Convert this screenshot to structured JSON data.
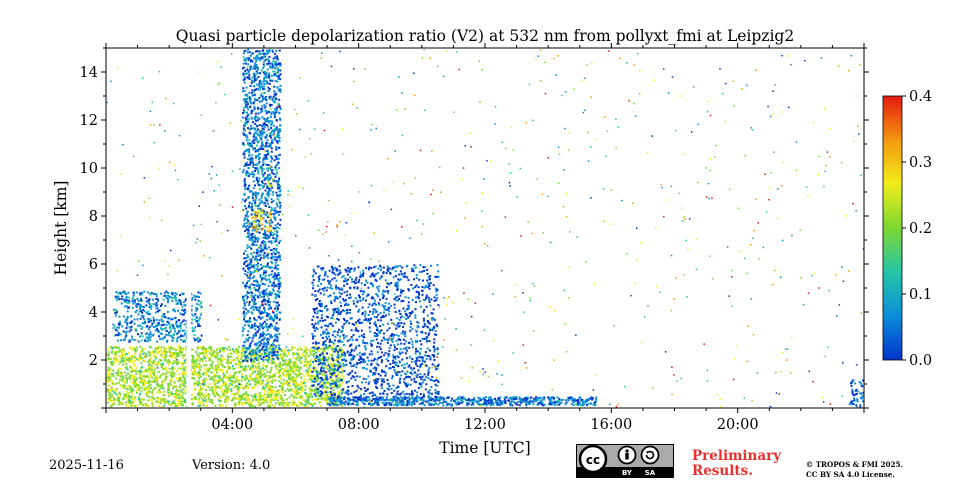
{
  "chart_data": {
    "type": "heatmap",
    "title": "Quasi particle depolarization ratio (V2) at 532 nm from pollyxt_fmi at Leipzig2",
    "xlabel": "Time [UTC]",
    "ylabel": "Height [km]",
    "xlim_hours": [
      0,
      24
    ],
    "ylim_km": [
      0,
      15
    ],
    "x_ticks": [
      {
        "hour": 4,
        "label": "04:00"
      },
      {
        "hour": 8,
        "label": "08:00"
      },
      {
        "hour": 12,
        "label": "12:00"
      },
      {
        "hour": 16,
        "label": "16:00"
      },
      {
        "hour": 20,
        "label": "20:00"
      }
    ],
    "y_ticks": [
      {
        "km": 2,
        "label": "2"
      },
      {
        "km": 4,
        "label": "4"
      },
      {
        "km": 6,
        "label": "6"
      },
      {
        "km": 8,
        "label": "8"
      },
      {
        "km": 10,
        "label": "10"
      },
      {
        "km": 12,
        "label": "12"
      },
      {
        "km": 14,
        "label": "14"
      }
    ],
    "colorbar": {
      "min": 0.0,
      "max": 0.4,
      "ticks": [
        {
          "value": 0.0,
          "label": "0.0"
        },
        {
          "value": 0.1,
          "label": "0.1"
        },
        {
          "value": 0.2,
          "label": "0.2"
        },
        {
          "value": 0.3,
          "label": "0.3"
        },
        {
          "value": 0.4,
          "label": "0.4"
        }
      ],
      "colormap": [
        "#0033cc",
        "#0a8fd8",
        "#23c6a8",
        "#7dd832",
        "#f2ec1a",
        "#f59a10",
        "#e21a0e"
      ]
    },
    "features": [
      {
        "name": "boundary-layer",
        "t0": 0.0,
        "t1": 7.5,
        "h0": 0.1,
        "h1": 2.6,
        "value": 0.22
      },
      {
        "name": "lofted-layer",
        "t0": 0.2,
        "t1": 3.0,
        "h0": 2.8,
        "h1": 4.9,
        "value": 0.06
      },
      {
        "name": "lower-layer-afternoon",
        "t0": 7.0,
        "t1": 15.5,
        "h0": 0.15,
        "h1": 0.5,
        "value": 0.05
      },
      {
        "name": "cirrus-column",
        "t0": 4.3,
        "t1": 5.5,
        "h0": 2.0,
        "h1": 15.0,
        "value": 0.05
      },
      {
        "name": "cirrus-patch",
        "t0": 4.6,
        "t1": 5.2,
        "h0": 7.4,
        "h1": 8.3,
        "value": 0.3
      },
      {
        "name": "cirrus-patch-high",
        "t0": 5.0,
        "t1": 5.3,
        "h0": 9.2,
        "h1": 9.6,
        "value": 0.22
      },
      {
        "name": "aerosol-noise-region",
        "t0": 6.5,
        "t1": 10.5,
        "h0": 0.5,
        "h1": 6.0,
        "value": 0.02
      },
      {
        "name": "evening-layer",
        "t0": 23.5,
        "t1": 24.0,
        "h0": 0.1,
        "h1": 1.2,
        "value": 0.03
      }
    ]
  },
  "footer": {
    "date": "2025-11-16",
    "version": "Version: 4.0",
    "preliminary_line1": "Preliminary",
    "preliminary_line2": "Results.",
    "copyright_line1": "© TROPOS & FMI 2025.",
    "copyright_line2": "CC BY SA 4.0 License.",
    "cc_by": "BY",
    "cc_sa": "SA"
  }
}
